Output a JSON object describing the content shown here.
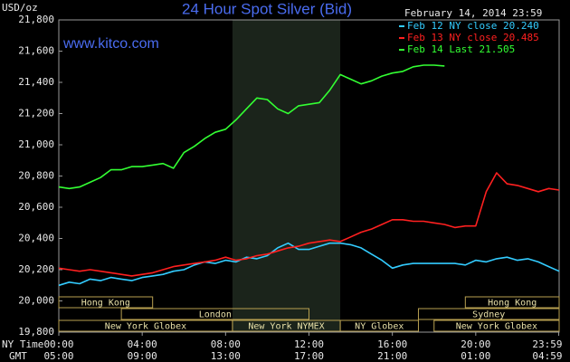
{
  "chart_data": {
    "type": "line",
    "title": "24 Hour Spot Silver (Bid)",
    "subtitle": "www.kitco.com",
    "y_label": "USD/oz",
    "date_label": "February 14, 2014 23:59",
    "x_label": "NY Time",
    "x2_label": "GMT",
    "xlim": [
      0,
      24
    ],
    "xticks": [
      {
        "value": 0,
        "label": "00:00"
      },
      {
        "value": 4,
        "label": "04:00"
      },
      {
        "value": 8,
        "label": "08:00"
      },
      {
        "value": 12,
        "label": "12:00"
      },
      {
        "value": 16,
        "label": "16:00"
      },
      {
        "value": 20,
        "label": "20:00"
      },
      {
        "value": 23.98,
        "label": "23:59"
      }
    ],
    "x2ticks": [
      {
        "value": 0,
        "label": "05:00"
      },
      {
        "value": 4,
        "label": "09:00"
      },
      {
        "value": 8,
        "label": "13:00"
      },
      {
        "value": 12,
        "label": "17:00"
      },
      {
        "value": 16,
        "label": "21:00"
      },
      {
        "value": 20,
        "label": "01:00"
      },
      {
        "value": 23.98,
        "label": "04:59"
      }
    ],
    "ylim": [
      19800,
      21800
    ],
    "yticks": [
      {
        "value": 19800,
        "label": "19,800"
      },
      {
        "value": 20000,
        "label": "20,000"
      },
      {
        "value": 20200,
        "label": "20,200"
      },
      {
        "value": 20400,
        "label": "20,400"
      },
      {
        "value": 20600,
        "label": "20,600"
      },
      {
        "value": 20800,
        "label": "20,800"
      },
      {
        "value": 21000,
        "label": "21,000"
      },
      {
        "value": 21200,
        "label": "21,200"
      },
      {
        "value": 21400,
        "label": "21,400"
      },
      {
        "value": 21600,
        "label": "21,600"
      },
      {
        "value": 21800,
        "label": "21,800"
      }
    ],
    "series": [
      {
        "name": "Feb 12 NY close 20.240",
        "color": "#33ccff",
        "x": [
          0,
          0.5,
          1,
          1.5,
          2,
          2.5,
          3,
          3.5,
          4,
          4.5,
          5,
          5.5,
          6,
          6.5,
          7,
          7.5,
          8,
          8.5,
          9,
          9.5,
          10,
          10.5,
          11,
          11.5,
          12,
          12.5,
          13,
          13.5,
          14,
          14.5,
          15,
          15.5,
          16,
          16.5,
          17,
          17.5,
          18,
          18.5,
          19,
          19.5,
          20,
          20.5,
          21,
          21.5,
          22,
          22.5,
          23,
          23.5,
          24
        ],
        "values": [
          20100,
          20120,
          20110,
          20140,
          20130,
          20150,
          20140,
          20130,
          20150,
          20160,
          20170,
          20190,
          20200,
          20230,
          20250,
          20240,
          20260,
          20250,
          20280,
          20270,
          20290,
          20340,
          20370,
          20330,
          20330,
          20350,
          20370,
          20370,
          20360,
          20340,
          20300,
          20260,
          20210,
          20230,
          20240,
          20240,
          20240,
          20240,
          20240,
          20230,
          20260,
          20250,
          20270,
          20280,
          20260,
          20270,
          20250,
          20220,
          20190
        ]
      },
      {
        "name": "Feb 13 NY close 20.485",
        "color": "#ff2020",
        "x": [
          0,
          0.5,
          1,
          1.5,
          2,
          2.5,
          3,
          3.5,
          4,
          4.5,
          5,
          5.5,
          6,
          6.5,
          7,
          7.5,
          8,
          8.5,
          9,
          9.5,
          10,
          10.5,
          11,
          11.5,
          12,
          12.5,
          13,
          13.5,
          14,
          14.5,
          15,
          15.5,
          16,
          16.5,
          17,
          17.5,
          18,
          18.5,
          19,
          19.5,
          20,
          20.5,
          21,
          21.5,
          22,
          22.5,
          23,
          23.5,
          24
        ],
        "values": [
          20210,
          20200,
          20190,
          20200,
          20190,
          20180,
          20170,
          20160,
          20170,
          20180,
          20200,
          20220,
          20230,
          20240,
          20250,
          20260,
          20280,
          20260,
          20270,
          20290,
          20300,
          20320,
          20340,
          20350,
          20370,
          20380,
          20390,
          20380,
          20410,
          20440,
          20460,
          20490,
          20520,
          20520,
          20510,
          20510,
          20500,
          20490,
          20470,
          20480,
          20480,
          20700,
          20820,
          20750,
          20740,
          20720,
          20700,
          20720,
          20710
        ]
      },
      {
        "name": "Feb 14 Last 21.505",
        "color": "#33ff33",
        "x": [
          0,
          0.5,
          1,
          1.5,
          2,
          2.5,
          3,
          3.5,
          4,
          4.5,
          5,
          5.5,
          6,
          6.5,
          7,
          7.5,
          8,
          8.5,
          9,
          9.5,
          10,
          10.5,
          11,
          11.5,
          12,
          12.5,
          13,
          13.5,
          14,
          14.5,
          15,
          15.5,
          16,
          16.5,
          17,
          17.5,
          18,
          18.5
        ],
        "values": [
          20730,
          20720,
          20730,
          20760,
          20790,
          20840,
          20840,
          20860,
          20860,
          20870,
          20880,
          20850,
          20950,
          20990,
          21040,
          21080,
          21100,
          21160,
          21230,
          21300,
          21290,
          21230,
          21200,
          21250,
          21260,
          21270,
          21350,
          21450,
          21420,
          21390,
          21410,
          21440,
          21460,
          21470,
          21500,
          21510,
          21510,
          21505
        ]
      }
    ],
    "sessions": [
      {
        "label": "Hong Kong",
        "start": 0,
        "end": 4.5
      },
      {
        "label": "London",
        "start": 3,
        "end": 12
      },
      {
        "label": "New York Globex",
        "start": 0,
        "end": 8.33
      },
      {
        "label": "New York NYMEX",
        "start": 8.33,
        "end": 13.5
      },
      {
        "label": "NY Globex",
        "start": 13.5,
        "end": 17.25
      },
      {
        "label": "Sydney",
        "start": 17.25,
        "end": 24
      },
      {
        "label": "Hong Kong",
        "start": 19.5,
        "end": 24
      },
      {
        "label": "New York Globex",
        "start": 18,
        "end": 24
      }
    ]
  }
}
